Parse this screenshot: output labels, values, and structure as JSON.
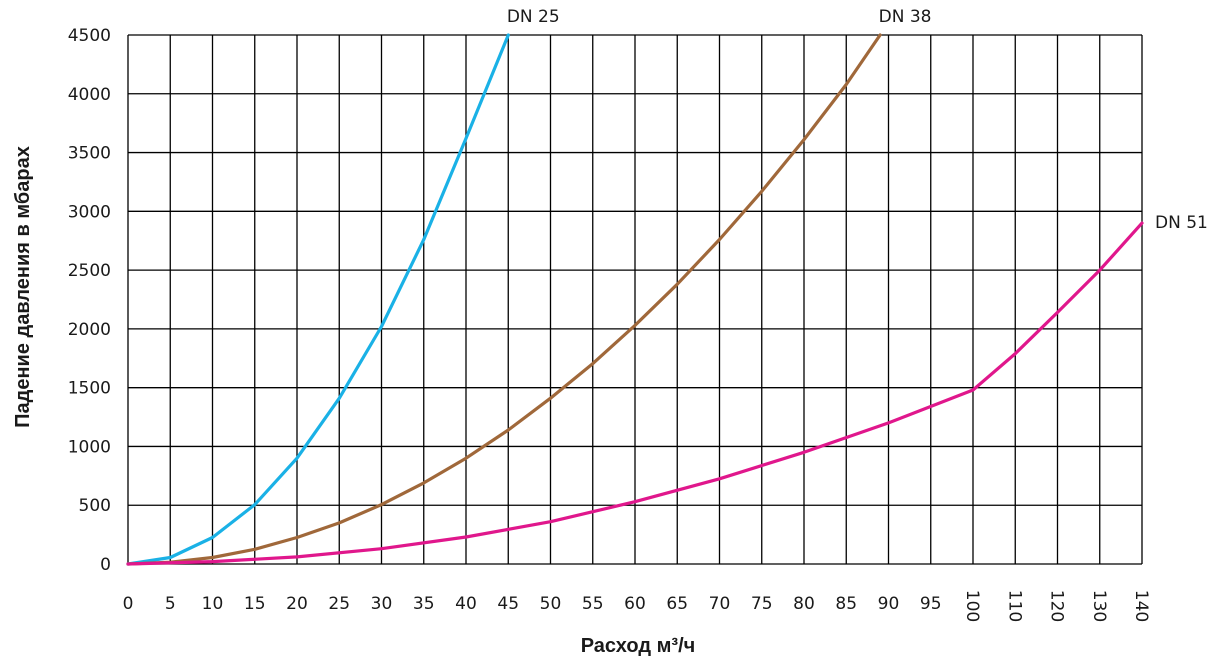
{
  "chart_data": {
    "type": "line",
    "xlabel": "Расход м³/ч",
    "ylabel": "Падение давления в мбарах",
    "ylim": [
      0,
      4500
    ],
    "grid": true,
    "x_ticks": [
      "0",
      "5",
      "10",
      "15",
      "20",
      "25",
      "30",
      "35",
      "40",
      "45",
      "50",
      "55",
      "60",
      "65",
      "70",
      "75",
      "80",
      "85",
      "90",
      "95",
      "100",
      "110",
      "120",
      "130",
      "140"
    ],
    "y_ticks": [
      "0",
      "500",
      "1000",
      "1500",
      "2000",
      "2500",
      "3000",
      "3500",
      "4000",
      "4500"
    ],
    "rotated_x_ticks": [
      "100",
      "110",
      "120",
      "130",
      "140"
    ],
    "series": [
      {
        "name": "DN 25",
        "color": "#1AB1E6",
        "points": [
          [
            0,
            0
          ],
          [
            5,
            55
          ],
          [
            10,
            225
          ],
          [
            15,
            505
          ],
          [
            20,
            900
          ],
          [
            25,
            1410
          ],
          [
            30,
            2020
          ],
          [
            35,
            2760
          ],
          [
            40,
            3620
          ],
          [
            45,
            4500
          ]
        ]
      },
      {
        "name": "DN 38",
        "color": "#A0683A",
        "points": [
          [
            0,
            0
          ],
          [
            5,
            15
          ],
          [
            10,
            55
          ],
          [
            15,
            125
          ],
          [
            20,
            225
          ],
          [
            25,
            350
          ],
          [
            30,
            505
          ],
          [
            35,
            690
          ],
          [
            40,
            900
          ],
          [
            45,
            1140
          ],
          [
            50,
            1410
          ],
          [
            55,
            1705
          ],
          [
            60,
            2030
          ],
          [
            65,
            2380
          ],
          [
            70,
            2760
          ],
          [
            75,
            3170
          ],
          [
            80,
            3610
          ],
          [
            85,
            4080
          ],
          [
            89,
            4500
          ]
        ]
      },
      {
        "name": "DN 51",
        "color": "#E0178C",
        "points": [
          [
            0,
            0
          ],
          [
            10,
            20
          ],
          [
            20,
            60
          ],
          [
            30,
            130
          ],
          [
            40,
            230
          ],
          [
            50,
            360
          ],
          [
            60,
            530
          ],
          [
            70,
            725
          ],
          [
            80,
            950
          ],
          [
            90,
            1200
          ],
          [
            100,
            1480
          ],
          [
            110,
            1790
          ],
          [
            120,
            2140
          ],
          [
            130,
            2500
          ],
          [
            140,
            2900
          ]
        ]
      }
    ]
  }
}
